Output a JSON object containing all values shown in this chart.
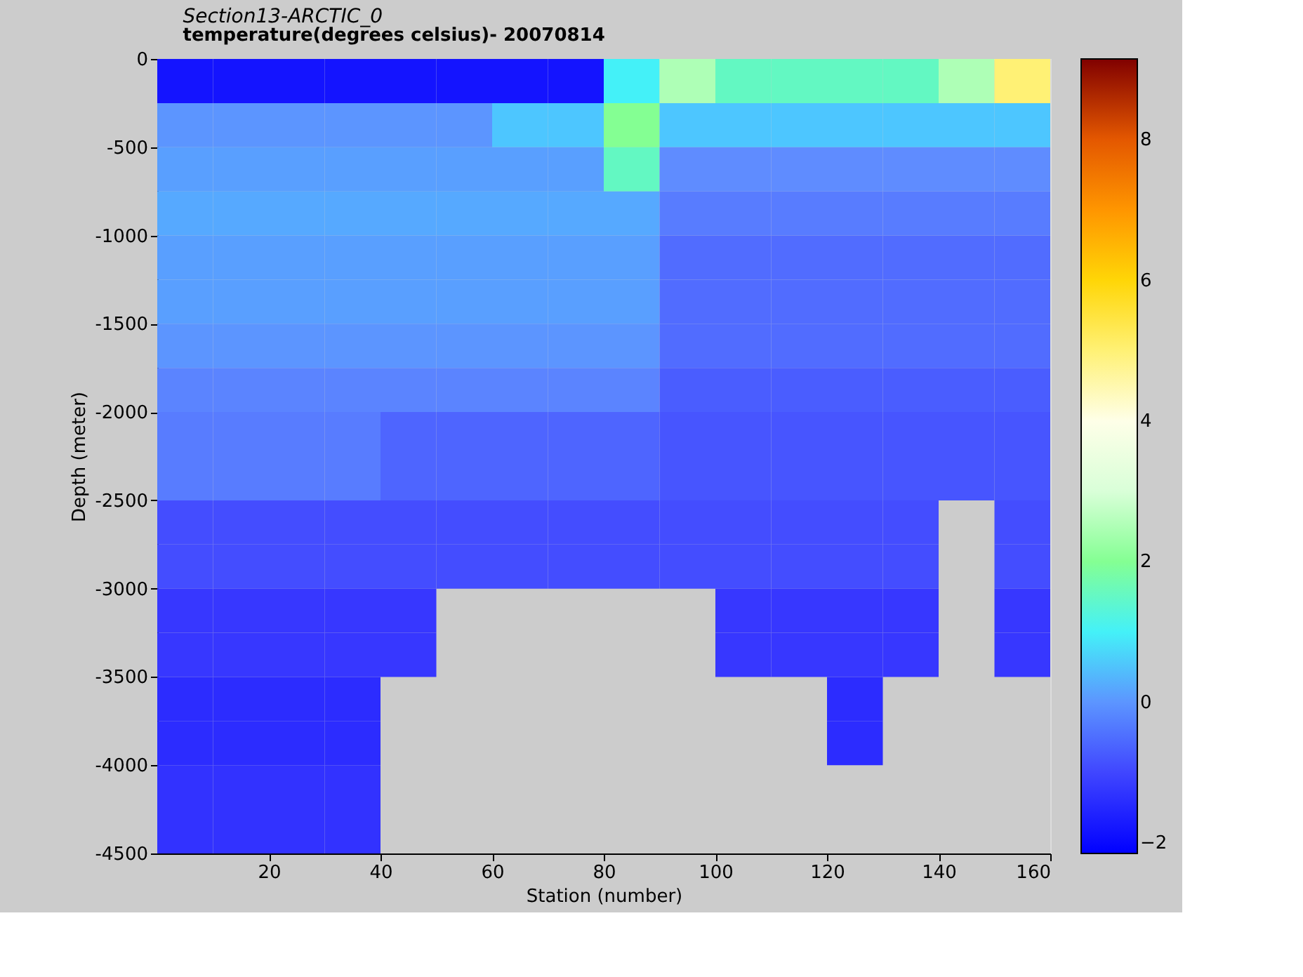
{
  "chart_data": {
    "type": "heatmap",
    "title": "Section13-ARCTIC_0",
    "subtitle": "temperature(degrees  celsius)- 20070814",
    "xlabel": "Station (number)",
    "ylabel": "Depth (meter)",
    "x": [
      5,
      15,
      25,
      35,
      45,
      55,
      65,
      75,
      85,
      95,
      105,
      115,
      125,
      135,
      145,
      155
    ],
    "y": [
      -125,
      -375,
      -625,
      -875,
      -1125,
      -1375,
      -1625,
      -1875,
      -2125,
      -2375,
      -2625,
      -2875,
      -3125,
      -3375,
      -3625,
      -3875,
      -4125,
      -4375
    ],
    "xlim": [
      0,
      160
    ],
    "xticks": [
      20,
      40,
      60,
      80,
      100,
      120,
      140,
      160
    ],
    "ylim": [
      -4500,
      0
    ],
    "yticks": [
      -4500,
      -4000,
      -3500,
      -3000,
      -2500,
      -2000,
      -1500,
      -1000,
      -500,
      0
    ],
    "clim": [
      -2.15,
      9.15
    ],
    "cticks": [
      -2,
      0,
      2,
      4,
      6,
      8
    ],
    "colors": [
      "#0000ff",
      "#3c3cff",
      "#5f8cff",
      "#40f0ff",
      "#80ff90",
      "#d8ffd8",
      "#ffffe8",
      "#fff070",
      "#ffd400",
      "#ff9000",
      "#e05000",
      "#800000"
    ],
    "cells": [
      [
        -1.8,
        -1.8,
        -1.8,
        -1.8,
        -1.8,
        -1.8,
        -1.8,
        -1.8,
        1.0,
        2.5,
        1.5,
        1.5,
        1.5,
        1.5,
        2.5,
        5.0
      ],
      [
        0.0,
        0.0,
        0.0,
        0.0,
        0.0,
        0.0,
        0.5,
        0.5,
        2.0,
        0.5,
        0.5,
        0.5,
        0.5,
        0.5,
        0.5,
        0.5
      ],
      [
        0.1,
        0.1,
        0.1,
        0.1,
        0.1,
        0.1,
        0.1,
        0.1,
        1.5,
        -0.1,
        -0.1,
        -0.1,
        -0.1,
        -0.1,
        -0.1,
        -0.1
      ],
      [
        0.2,
        0.2,
        0.2,
        0.2,
        0.2,
        0.2,
        0.2,
        0.2,
        0.2,
        -0.3,
        -0.3,
        -0.3,
        -0.3,
        -0.3,
        -0.3,
        -0.3
      ],
      [
        0.1,
        0.1,
        0.1,
        0.1,
        0.1,
        0.1,
        0.1,
        0.1,
        0.1,
        -0.5,
        -0.5,
        -0.5,
        -0.5,
        -0.5,
        -0.5,
        -0.5
      ],
      [
        0.1,
        0.1,
        0.1,
        0.1,
        0.1,
        0.1,
        0.1,
        0.1,
        0.1,
        -0.5,
        -0.5,
        -0.5,
        -0.5,
        -0.5,
        -0.5,
        -0.5
      ],
      [
        0.0,
        0.0,
        0.0,
        0.0,
        0.0,
        0.0,
        0.0,
        0.0,
        0.0,
        -0.5,
        -0.5,
        -0.5,
        -0.5,
        -0.5,
        -0.5,
        -0.5
      ],
      [
        -0.2,
        -0.2,
        -0.2,
        -0.2,
        -0.2,
        -0.2,
        -0.2,
        -0.2,
        -0.2,
        -0.7,
        -0.7,
        -0.7,
        -0.7,
        -0.7,
        -0.7,
        -0.7
      ],
      [
        -0.3,
        -0.3,
        -0.3,
        -0.3,
        -0.6,
        -0.6,
        -0.6,
        -0.6,
        -0.6,
        -0.8,
        -0.8,
        -0.8,
        -0.8,
        -0.8,
        -0.8,
        -0.8
      ],
      [
        -0.3,
        -0.3,
        -0.3,
        -0.3,
        -0.6,
        -0.6,
        -0.6,
        -0.6,
        -0.6,
        -0.8,
        -0.8,
        -0.8,
        -0.8,
        -0.8,
        -0.8,
        -0.8
      ],
      [
        -0.9,
        -0.9,
        -0.9,
        -0.9,
        -0.9,
        -0.9,
        -0.9,
        -0.9,
        -0.9,
        -0.9,
        -0.9,
        -0.9,
        -0.9,
        -0.9,
        null,
        -0.9
      ],
      [
        -0.9,
        -0.9,
        -0.9,
        -0.9,
        -0.9,
        -0.9,
        -0.9,
        -0.9,
        -0.9,
        -0.9,
        -0.9,
        -0.9,
        -0.9,
        -0.9,
        null,
        -0.9
      ],
      [
        -1.2,
        -1.2,
        -1.2,
        -1.2,
        -1.2,
        null,
        null,
        null,
        null,
        null,
        -1.2,
        -1.2,
        -1.2,
        -1.2,
        null,
        -1.2
      ],
      [
        -1.2,
        -1.2,
        -1.2,
        -1.2,
        -1.2,
        null,
        null,
        null,
        null,
        null,
        -1.2,
        -1.2,
        -1.2,
        -1.2,
        null,
        -1.2
      ],
      [
        -1.4,
        -1.4,
        -1.4,
        -1.4,
        null,
        null,
        null,
        null,
        null,
        null,
        null,
        null,
        -1.4,
        null,
        null,
        null
      ],
      [
        -1.4,
        -1.4,
        -1.4,
        -1.4,
        null,
        null,
        null,
        null,
        null,
        null,
        null,
        null,
        -1.4,
        null,
        null,
        null
      ],
      [
        -1.3,
        -1.3,
        -1.3,
        -1.3,
        null,
        null,
        null,
        null,
        null,
        null,
        null,
        null,
        null,
        null,
        null,
        null
      ],
      [
        -1.3,
        -1.3,
        -1.3,
        -1.3,
        null,
        null,
        null,
        null,
        null,
        null,
        null,
        null,
        null,
        null,
        null,
        null
      ]
    ]
  }
}
